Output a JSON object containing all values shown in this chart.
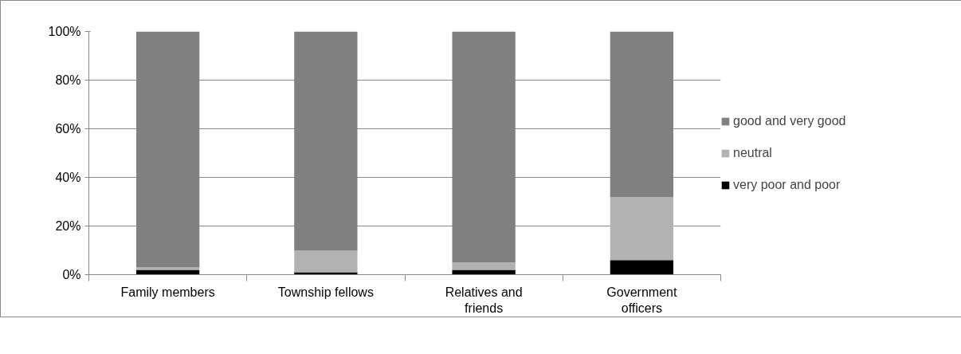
{
  "chart_data": {
    "type": "bar",
    "stacked": true,
    "categories": [
      "Family members",
      "Township fellows",
      "Relatives and friends",
      "Government officers"
    ],
    "series": [
      {
        "name": "very poor and poor",
        "color": "#000000",
        "values": [
          2,
          1,
          2,
          6
        ]
      },
      {
        "name": "neutral",
        "color": "#b2b2b2",
        "values": [
          1,
          9,
          3,
          26
        ]
      },
      {
        "name": "good and very good",
        "color": "#808080",
        "values": [
          97,
          90,
          95,
          68
        ]
      }
    ],
    "ylim": [
      0,
      100
    ],
    "yticks": [
      {
        "value": 0,
        "label": "0%"
      },
      {
        "value": 20,
        "label": "20%"
      },
      {
        "value": 40,
        "label": "40%"
      },
      {
        "value": 60,
        "label": "60%"
      },
      {
        "value": 80,
        "label": "80%"
      },
      {
        "value": 100,
        "label": "100%"
      }
    ],
    "grid": "y",
    "legend": "right"
  }
}
